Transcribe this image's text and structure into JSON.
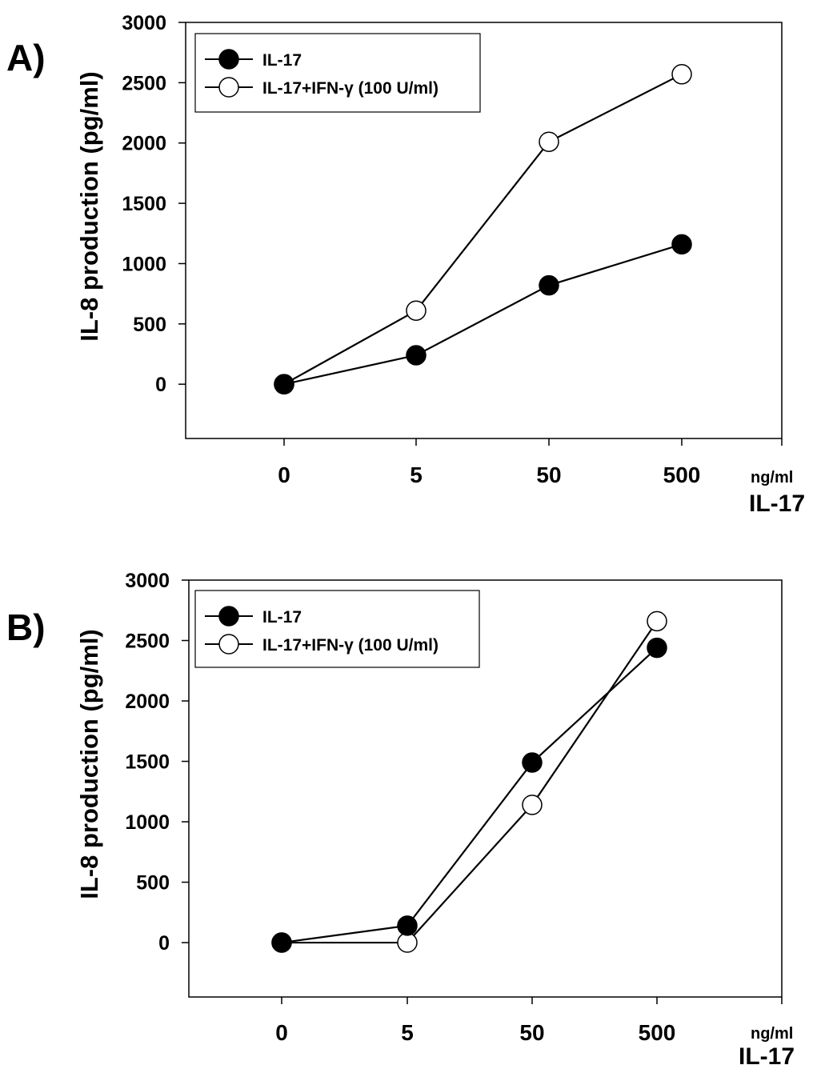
{
  "panels": [
    {
      "label": "A)",
      "ylabel": "IL-8 production (pg/ml)",
      "unit": "ng/ml",
      "xlabel": "IL-17",
      "legend_position": "top-left"
    },
    {
      "label": "B)",
      "ylabel": "IL-8 production (pg/ml)",
      "unit": "ng/ml",
      "xlabel": "IL-17",
      "legend_position": "top-left"
    }
  ],
  "chart_data": [
    {
      "type": "line",
      "panel": "A)",
      "categories": [
        "0",
        "5",
        "50",
        "500"
      ],
      "ylabel": "IL-8 production (pg/ml)",
      "xlabel": "IL-17",
      "ylim": [
        -450,
        3000
      ],
      "yticks": [
        0,
        500,
        1000,
        1500,
        2000,
        2500,
        3000
      ],
      "grid": false,
      "series": [
        {
          "name": "IL-17",
          "marker": "filled-circle",
          "color": "#000000",
          "values": [
            0,
            240,
            820,
            1160
          ]
        },
        {
          "name": "IL-17+IFN-γ (100 U/ml)",
          "marker": "open-circle",
          "color": "#000000",
          "values": [
            0,
            610,
            2010,
            2570
          ]
        }
      ]
    },
    {
      "type": "line",
      "panel": "B)",
      "categories": [
        "0",
        "5",
        "50",
        "500"
      ],
      "ylabel": "IL-8 production (pg/ml)",
      "xlabel": "IL-17",
      "ylim": [
        -450,
        3000
      ],
      "yticks": [
        0,
        500,
        1000,
        1500,
        2000,
        2500,
        3000
      ],
      "grid": false,
      "series": [
        {
          "name": "IL-17",
          "marker": "filled-circle",
          "color": "#000000",
          "values": [
            0,
            140,
            1490,
            2440
          ]
        },
        {
          "name": "IL-17+IFN-γ (100 U/ml)",
          "marker": "open-circle",
          "color": "#000000",
          "values": [
            0,
            0,
            1140,
            2660
          ]
        }
      ]
    }
  ]
}
